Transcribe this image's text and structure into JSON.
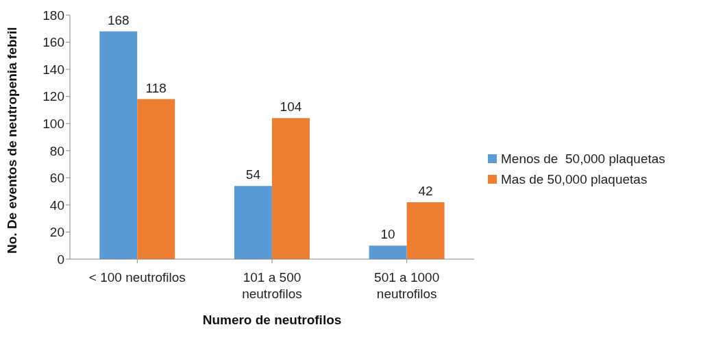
{
  "chart_data": {
    "type": "bar",
    "xlabel": "Numero de neutrofilos",
    "ylabel": "No. De eventos de neutropenia febril",
    "categories": [
      "< 100 neutrofilos",
      "101 a 500 neutrofilos",
      "501 a 1000 neutrofilos"
    ],
    "series": [
      {
        "name": "Menos de  50,000 plaquetas",
        "color": "#5b9bd5",
        "values": [
          168,
          54,
          10
        ]
      },
      {
        "name": "Mas de 50,000 plaquetas",
        "color": "#ed7d31",
        "values": [
          118,
          104,
          42
        ]
      }
    ],
    "ylim": [
      0,
      180
    ],
    "yticks": [
      0,
      20,
      40,
      60,
      80,
      100,
      120,
      140,
      160,
      180
    ],
    "grid": false,
    "legend": "right",
    "data_labels": true
  }
}
